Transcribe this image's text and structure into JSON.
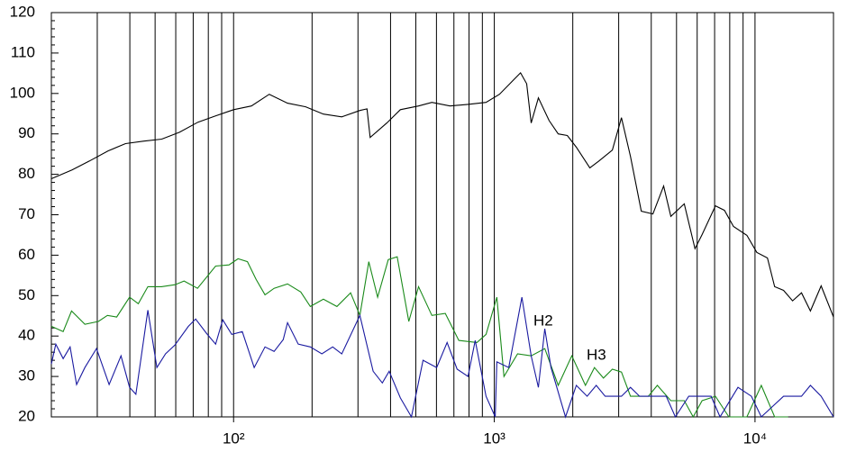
{
  "chart_data": {
    "type": "line",
    "xscale": "log",
    "grid": true,
    "xlim": [
      20,
      20000
    ],
    "ylim": [
      20,
      120
    ],
    "xticks": [
      {
        "value": 100,
        "label": "10²"
      },
      {
        "value": 1000,
        "label": "10³"
      },
      {
        "value": 10000,
        "label": "10⁴"
      }
    ],
    "yticks": [
      20,
      30,
      40,
      50,
      60,
      70,
      80,
      90,
      100,
      110,
      120
    ],
    "annotations": [
      "H2",
      "H3"
    ],
    "series": [
      {
        "color": "#000000",
        "x": [
          20,
          24,
          28,
          33,
          38.5,
          45,
          53,
          62,
          73,
          85,
          100,
          117,
          137,
          161,
          189,
          221,
          260,
          305,
          325,
          334,
          387,
          436,
          512,
          576,
          676,
          793,
          930,
          1047,
          1183,
          1261,
          1331,
          1385,
          1476,
          1623,
          1758,
          1905,
          2064,
          2325,
          2519,
          2838,
          3074,
          3329,
          3663,
          4058,
          4462,
          4754,
          5354,
          5885,
          6267,
          7054,
          7636,
          8266,
          9306,
          10160,
          11160,
          11890,
          12870,
          13930,
          15080,
          16320,
          17930,
          20000
        ],
        "values": [
          78.9,
          81.1,
          83.3,
          85.8,
          87.6,
          88.2,
          88.7,
          90.4,
          92.9,
          94.4,
          96,
          96.9,
          99.8,
          97.6,
          96.7,
          94.9,
          94.2,
          95.8,
          96.2,
          89.1,
          92.7,
          96,
          96.9,
          97.8,
          96.9,
          97.3,
          97.8,
          99.8,
          103.3,
          105.1,
          102.4,
          92.7,
          98.9,
          93.3,
          90,
          89.6,
          86.7,
          81.6,
          83.3,
          86,
          94,
          84.4,
          70.9,
          70.2,
          77.1,
          69.6,
          72.7,
          61.6,
          65.1,
          72.2,
          71.1,
          67.1,
          64.9,
          60.7,
          59.3,
          52.2,
          51.3,
          48.7,
          50.7,
          46.2,
          52.4,
          44.7
        ]
      },
      {
        "color": "#1a8a1a",
        "x": [
          20,
          22.2,
          23.9,
          26.9,
          30.3,
          32.8,
          35.6,
          39.9,
          43.1,
          46.9,
          52.9,
          59.6,
          64.6,
          72.7,
          85.3,
          96.1,
          104,
          113,
          122,
          132,
          143,
          161,
          181,
          197,
          221,
          249,
          281,
          305,
          330,
          357,
          392,
          424,
          470,
          512,
          576,
          649,
          731,
          858,
          930,
          1023,
          1089,
          1228,
          1385,
          1562,
          1758,
          1983,
          2236,
          2422,
          2622,
          2838,
          3074,
          3329,
          3898,
          4219,
          4754,
          5354,
          5795,
          6267,
          7054,
          7941,
          9306,
          10570,
          11890,
          13400
        ],
        "values": [
          42.4,
          41.1,
          46.2,
          42.9,
          43.6,
          45.1,
          44.7,
          49.6,
          48,
          52.2,
          52.2,
          52.7,
          53.6,
          51.8,
          57.3,
          57.6,
          59.1,
          58.4,
          54,
          50.2,
          51.8,
          52.9,
          50.9,
          47.3,
          49.1,
          47.3,
          50.7,
          45.1,
          58.4,
          49.6,
          58.9,
          59.6,
          43.6,
          52.2,
          45.1,
          45.6,
          38.9,
          38.4,
          40.4,
          49.6,
          30,
          35.6,
          35.1,
          36.9,
          27.8,
          35.1,
          27.8,
          32.2,
          29.6,
          31.8,
          31.1,
          25.1,
          25.1,
          27.8,
          24,
          24,
          20,
          24,
          25.1,
          20,
          20,
          27.8,
          20,
          20
        ]
      },
      {
        "color": "#1a1aa0",
        "x": [
          20,
          20.8,
          22.2,
          23.6,
          25,
          26.9,
          29.8,
          33.3,
          37,
          39.9,
          42.2,
          46.9,
          50.8,
          54.8,
          59.6,
          67.1,
          71.5,
          78.7,
          85.3,
          90.9,
          98.4,
          108,
          120,
          132,
          143,
          155,
          161,
          177,
          197,
          218,
          240,
          260,
          305,
          343,
          372,
          395,
          436,
          481,
          533,
          601,
          659,
          720,
          793,
          845,
          930,
          1008,
          1023,
          1136,
          1276,
          1385,
          1476,
          1562,
          1650,
          1875,
          2064,
          2271,
          2460,
          2663,
          3074,
          3329,
          3607,
          4565,
          4950,
          5573,
          6786,
          7343,
          8605,
          9686,
          10570,
          12870,
          15080,
          16320,
          17930,
          20000
        ],
        "values": [
          33.1,
          38,
          34.4,
          37.3,
          28,
          32.2,
          36.9,
          28,
          35.1,
          27.3,
          25.6,
          46.4,
          32.2,
          35.6,
          37.8,
          42.4,
          44.2,
          40.7,
          38,
          44,
          40.4,
          41.1,
          32.2,
          37.3,
          36.2,
          39.1,
          43.3,
          38,
          37.3,
          35.6,
          37.3,
          35.6,
          45.1,
          31.3,
          28.4,
          31.3,
          24.7,
          20,
          34,
          32.2,
          38.4,
          31.8,
          30,
          38.9,
          25.1,
          20,
          33.6,
          32.2,
          49.6,
          35.1,
          27.3,
          41.8,
          32.2,
          20,
          27.8,
          25.1,
          27.8,
          25.1,
          25.1,
          27.3,
          25.1,
          25.1,
          20,
          25.1,
          25.1,
          20,
          27.3,
          25.1,
          20,
          25.1,
          25.1,
          27.8,
          25.1,
          20
        ]
      }
    ]
  }
}
